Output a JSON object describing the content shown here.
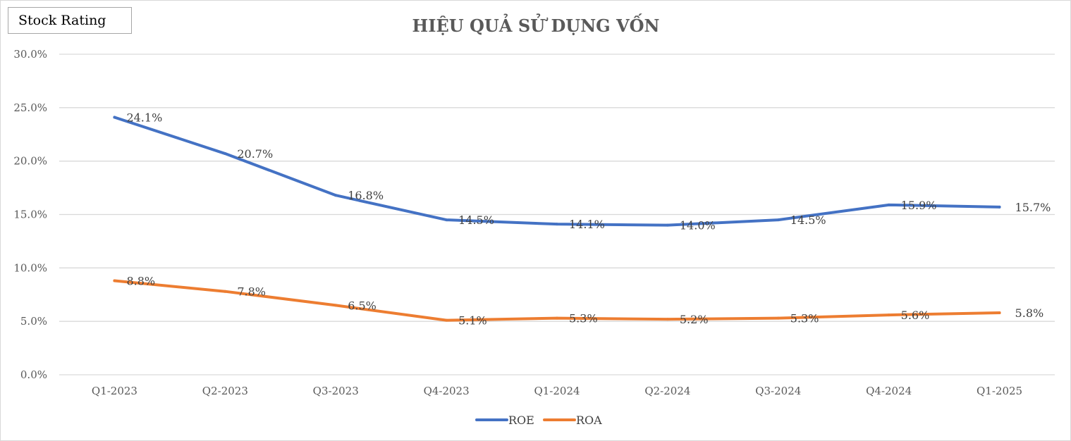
{
  "badge": "Stock Rating",
  "chart_data": {
    "type": "line",
    "title": "HIỆU QUẢ SỬ DỤNG VỐN",
    "xlabel": "",
    "ylabel": "",
    "categories": [
      "Q1-2023",
      "Q2-2023",
      "Q3-2023",
      "Q4-2023",
      "Q1-2024",
      "Q2-2024",
      "Q3-2024",
      "Q4-2024",
      "Q1-2025"
    ],
    "series": [
      {
        "name": "ROE",
        "color": "#4472C4",
        "values": [
          24.1,
          20.7,
          16.8,
          14.5,
          14.1,
          14.0,
          14.5,
          15.9,
          15.7
        ],
        "labels": [
          "24.1%",
          "20.7%",
          "16.8%",
          "14.5%",
          "14.1%",
          "14.0%",
          "14.5%",
          "15.9%",
          "15.7%"
        ]
      },
      {
        "name": "ROA",
        "color": "#ED7D31",
        "values": [
          8.8,
          7.8,
          6.5,
          5.1,
          5.3,
          5.2,
          5.3,
          5.6,
          5.8
        ],
        "labels": [
          "8.8%",
          "7.8%",
          "6.5%",
          "5.1%",
          "5.3%",
          "5.2%",
          "5.3%",
          "5.6%",
          "5.8%"
        ]
      }
    ],
    "ylim": [
      0,
      30
    ],
    "yticks": [
      "0.0%",
      "5.0%",
      "10.0%",
      "15.0%",
      "20.0%",
      "25.0%",
      "30.0%"
    ],
    "grid": true,
    "legend": "bottom"
  }
}
